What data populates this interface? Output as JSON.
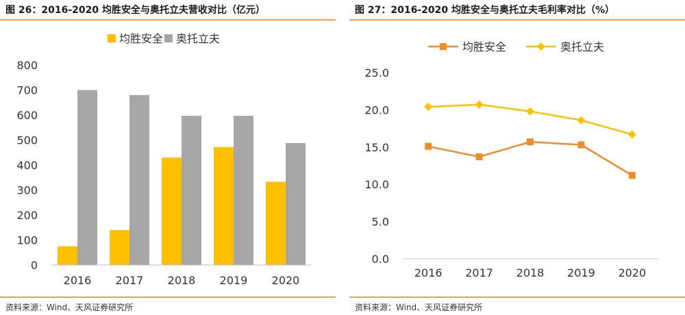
{
  "chart_data": [
    {
      "type": "bar",
      "title": "图 26：2016-2020 均胜安全与奥托立夫营收对比（亿元）",
      "source": "资料来源：Wind、天风证券研究所",
      "categories": [
        "2016",
        "2017",
        "2018",
        "2019",
        "2020"
      ],
      "series": [
        {
          "name": "均胜安全",
          "color": "#FFC000",
          "values": [
            75,
            140,
            430,
            472,
            333
          ]
        },
        {
          "name": "奥托立夫",
          "color": "#A6A6A6",
          "values": [
            700,
            680,
            597,
            597,
            488
          ]
        }
      ],
      "ylim": [
        0,
        800
      ],
      "yticks": [
        "0",
        "100",
        "200",
        "300",
        "400",
        "500",
        "600",
        "700",
        "800"
      ],
      "legend_position": "top-center",
      "grid": false
    },
    {
      "type": "line",
      "title": "图 27：2016-2020 均胜安全与奥托立夫毛利率对比（%）",
      "source": "资料来源：Wind、天风证券研究所",
      "categories": [
        "2016",
        "2017",
        "2018",
        "2019",
        "2020"
      ],
      "series": [
        {
          "name": "均胜安全",
          "color": "#F08C28",
          "marker": "square",
          "values": [
            15.1,
            13.7,
            15.7,
            15.3,
            11.2
          ]
        },
        {
          "name": "奥托立夫",
          "color": "#FFC000",
          "marker": "diamond",
          "values": [
            20.4,
            20.7,
            19.8,
            18.6,
            16.7
          ]
        }
      ],
      "ylim": [
        0,
        25
      ],
      "yticks": [
        "0.0",
        "5.0",
        "10.0",
        "15.0",
        "20.0",
        "25.0"
      ],
      "legend_position": "top-center",
      "grid": false
    }
  ]
}
